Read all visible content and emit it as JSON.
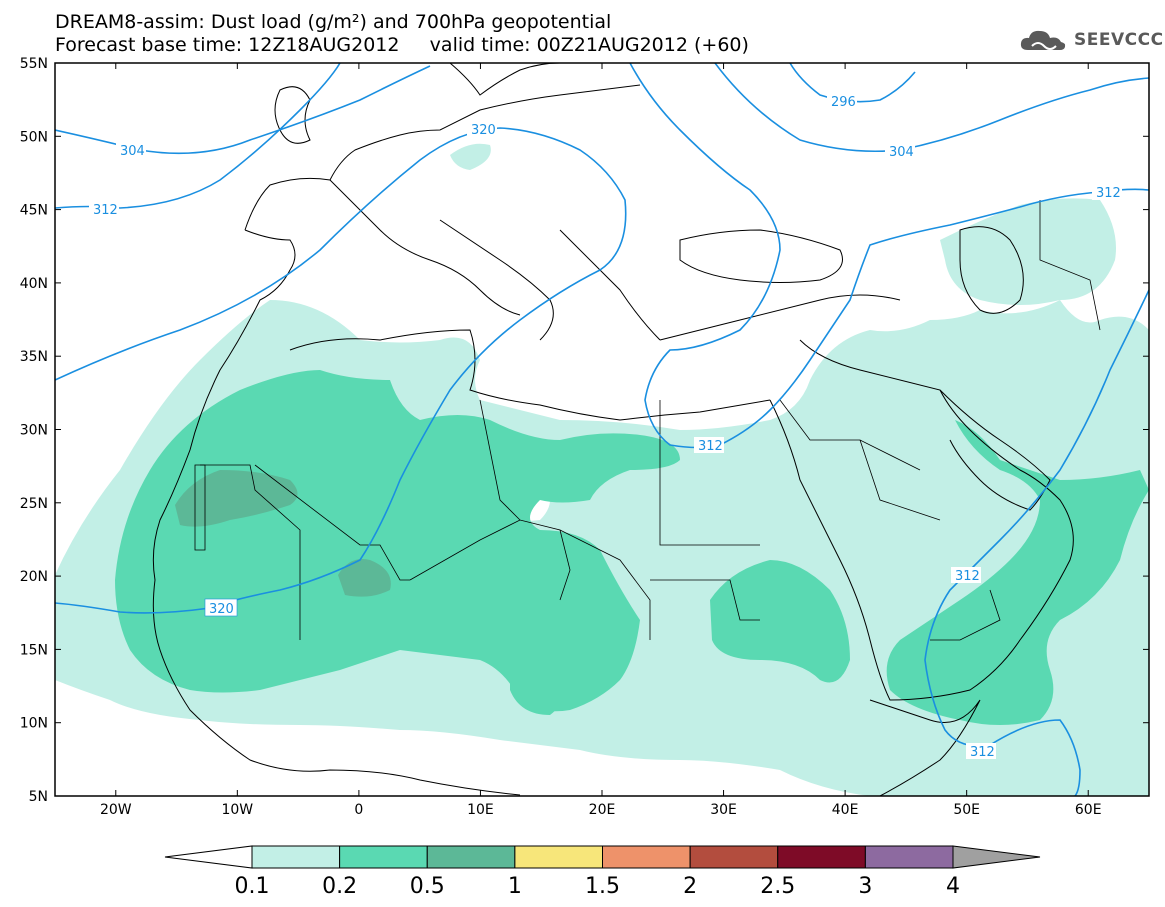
{
  "header": {
    "line1": "DREAM8-assim: Dust load (g/m²) and 700hPa geopotential",
    "line2": "Forecast base time: 12Z18AUG2012     valid time: 00Z21AUG2012 (+60)"
  },
  "logo": {
    "text": "SEEVCCC",
    "color": "#5a5a5a"
  },
  "map": {
    "lat_labels": [
      "55N",
      "50N",
      "45N",
      "40N",
      "35N",
      "30N",
      "25N",
      "20N",
      "15N",
      "10N",
      "5N"
    ],
    "lon_labels": [
      "20W",
      "10W",
      "0",
      "10E",
      "20E",
      "30E",
      "40E",
      "50E",
      "60E"
    ],
    "lon_range": [
      -25,
      65
    ],
    "lat_range": [
      5,
      55
    ],
    "contours": [
      {
        "value": "304",
        "label": "304"
      },
      {
        "value": "312",
        "label": "312"
      },
      {
        "value": "320",
        "label": "320"
      },
      {
        "value": "296",
        "label": "296"
      },
      {
        "value": "312",
        "label": "312"
      },
      {
        "value": "312",
        "label": "312"
      },
      {
        "value": "304",
        "label": "304"
      },
      {
        "value": "312",
        "label": "312"
      },
      {
        "value": "312",
        "label": "312"
      },
      {
        "value": "320",
        "label": "320"
      }
    ],
    "contour_color": "#1a8fe0"
  },
  "colorbar": {
    "labels": [
      "0.1",
      "0.2",
      "0.5",
      "1",
      "1.5",
      "2",
      "2.5",
      "3",
      "4"
    ],
    "colors": [
      "#c2efe6",
      "#5ad9b2",
      "#5cb897",
      "#f7e67a",
      "#ee926a",
      "#b34d3e",
      "#7e0b27",
      "#8d6aa0",
      "#a0a0a0"
    ]
  }
}
